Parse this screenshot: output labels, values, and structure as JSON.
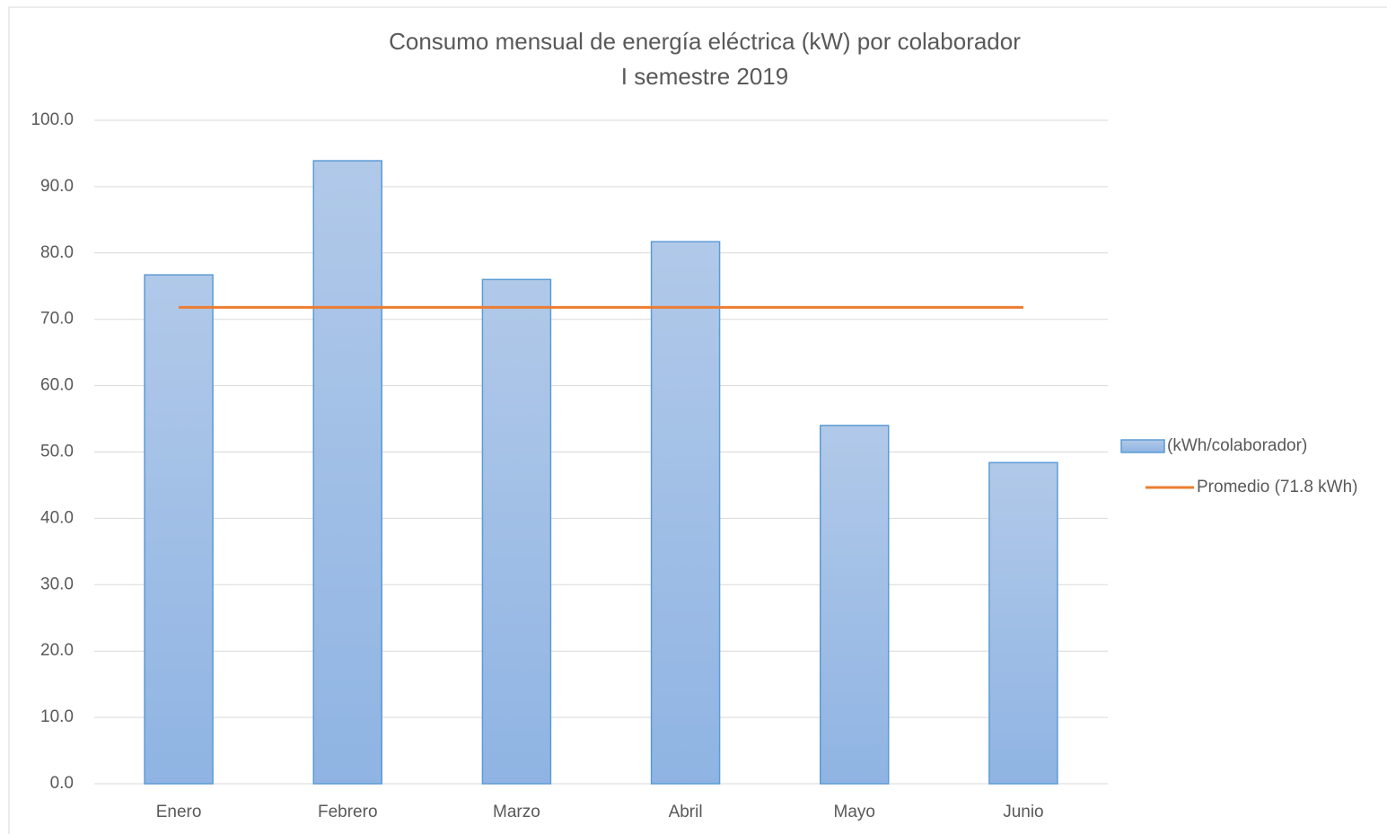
{
  "chart_data": {
    "type": "bar",
    "title": "Consumo mensual de energía eléctrica (kW) por colaborador",
    "subtitle": "I semestre 2019",
    "categories": [
      "Enero",
      "Febrero",
      "Marzo",
      "Abril",
      "Mayo",
      "Junio"
    ],
    "series": [
      {
        "name": "(kWh/colaborador)",
        "type": "bar",
        "color": "#5b9bd5",
        "values": [
          76.7,
          93.9,
          76.0,
          81.7,
          54.0,
          48.4
        ]
      },
      {
        "name": "Promedio (71.8 kWh)",
        "type": "line",
        "color": "#ed7d31",
        "values": [
          71.8,
          71.8,
          71.8,
          71.8,
          71.8,
          71.8
        ]
      }
    ],
    "ylim": [
      0,
      100
    ],
    "yticks": [
      {
        "value": 0,
        "label": "0.0"
      },
      {
        "value": 10,
        "label": "10.0"
      },
      {
        "value": 20,
        "label": "20.0"
      },
      {
        "value": 30,
        "label": "30.0"
      },
      {
        "value": 40,
        "label": "40.0"
      },
      {
        "value": 50,
        "label": "50.0"
      },
      {
        "value": 60,
        "label": "60.0"
      },
      {
        "value": 70,
        "label": "70.0"
      },
      {
        "value": 80,
        "label": "80.0"
      },
      {
        "value": 90,
        "label": "90.0"
      },
      {
        "value": 100,
        "label": "100.0"
      }
    ],
    "grid": true,
    "legend": "right"
  }
}
